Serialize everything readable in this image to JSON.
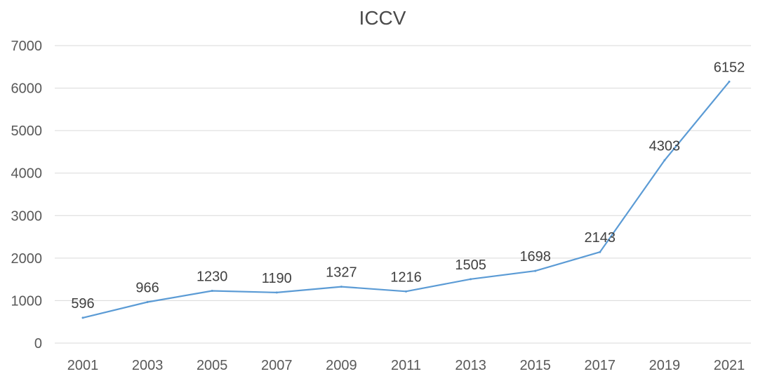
{
  "chart_data": {
    "type": "line",
    "title": "ICCV",
    "xlabel": "",
    "ylabel": "",
    "categories": [
      "2001",
      "2003",
      "2005",
      "2007",
      "2009",
      "2011",
      "2013",
      "2015",
      "2017",
      "2019",
      "2021"
    ],
    "series": [
      {
        "name": "ICCV",
        "values": [
          596,
          966,
          1230,
          1190,
          1327,
          1216,
          1505,
          1698,
          2143,
          4303,
          6152
        ],
        "color": "#5b9bd5"
      }
    ],
    "ylim": [
      0,
      7000
    ],
    "yticks": [
      0,
      1000,
      2000,
      3000,
      4000,
      5000,
      6000,
      7000
    ],
    "grid": true,
    "legend": "none",
    "data_labels": true
  }
}
